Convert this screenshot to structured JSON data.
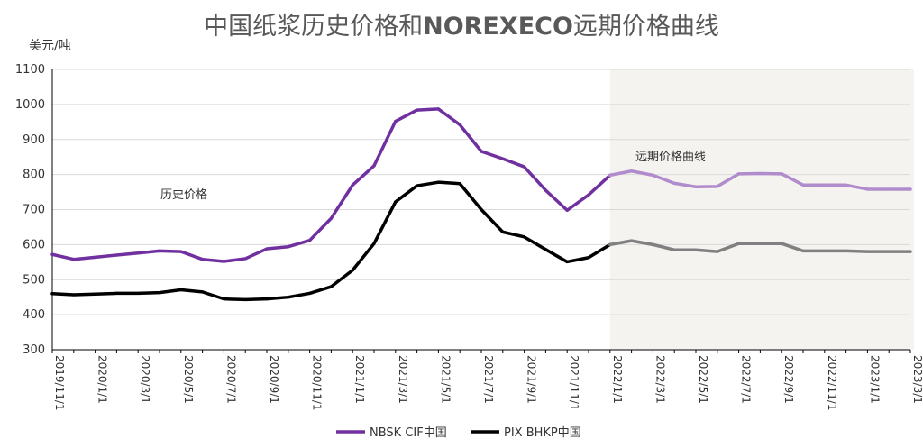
{
  "chart_data": {
    "type": "line",
    "title_cn_prefix": "中国纸浆历史价格和",
    "title_brand": "NOREXECO",
    "title_cn_suffix": "远期价格曲线",
    "unit_label": "美元/吨",
    "ylim": [
      300,
      1100
    ],
    "yticks": [
      300,
      400,
      500,
      600,
      700,
      800,
      900,
      1000,
      1100
    ],
    "x_tick_labels": [
      "2019/11/1",
      "2020/1/1",
      "2020/3/1",
      "2020/5/1",
      "2020/7/1",
      "2020/9/1",
      "2020/11/1",
      "2021/1/1",
      "2021/3/1",
      "2021/5/1",
      "2021/7/1",
      "2021/9/1",
      "2021/11/1",
      "2022/1/1",
      "2022/3/1",
      "2022/5/1",
      "2022/7/1",
      "2022/9/1",
      "2022/11/1",
      "2023/1/1",
      "2023/3/1"
    ],
    "months": [
      "2019/11",
      "2019/12",
      "2020/1",
      "2020/2",
      "2020/3",
      "2020/4",
      "2020/5",
      "2020/6",
      "2020/7",
      "2020/8",
      "2020/9",
      "2020/10",
      "2020/11",
      "2020/12",
      "2021/1",
      "2021/2",
      "2021/3",
      "2021/4",
      "2021/5",
      "2021/6",
      "2021/7",
      "2021/8",
      "2021/9",
      "2021/10",
      "2021/11",
      "2021/12",
      "2022/1",
      "2022/2",
      "2022/3",
      "2022/4",
      "2022/5",
      "2022/6",
      "2022/7",
      "2022/8",
      "2022/9",
      "2022/10",
      "2022/11",
      "2022/12",
      "2023/1",
      "2023/2",
      "2023/3"
    ],
    "forward_start_index": 26,
    "history_label": "历史价格",
    "forward_label": "远期价格曲线",
    "series": [
      {
        "name": "NBSK CIF中国",
        "color": "#7030a0",
        "forward_color": "#b08ccd",
        "values": [
          572,
          558,
          564,
          570,
          576,
          582,
          580,
          558,
          552,
          560,
          588,
          594,
          612,
          675,
          770,
          825,
          952,
          984,
          987,
          942,
          866,
          845,
          822,
          755,
          698,
          742,
          798,
          810,
          798,
          775,
          765,
          766,
          802,
          803,
          802,
          770,
          770,
          770,
          758,
          758,
          758
        ]
      },
      {
        "name": "PIX BHKP中国",
        "color": "#000000",
        "forward_color": "#808080",
        "values": [
          460,
          457,
          459,
          461,
          461,
          463,
          471,
          465,
          445,
          443,
          445,
          450,
          461,
          480,
          527,
          603,
          722,
          768,
          778,
          774,
          700,
          636,
          622,
          586,
          551,
          563,
          600,
          611,
          600,
          585,
          585,
          580,
          603,
          603,
          603,
          582,
          582,
          582,
          580,
          580,
          580
        ]
      }
    ],
    "legend_position": "bottom-center",
    "colors": {
      "forward_area": "#f4f3ef",
      "grid": "#d9d9d9",
      "axis": "#000000"
    }
  }
}
